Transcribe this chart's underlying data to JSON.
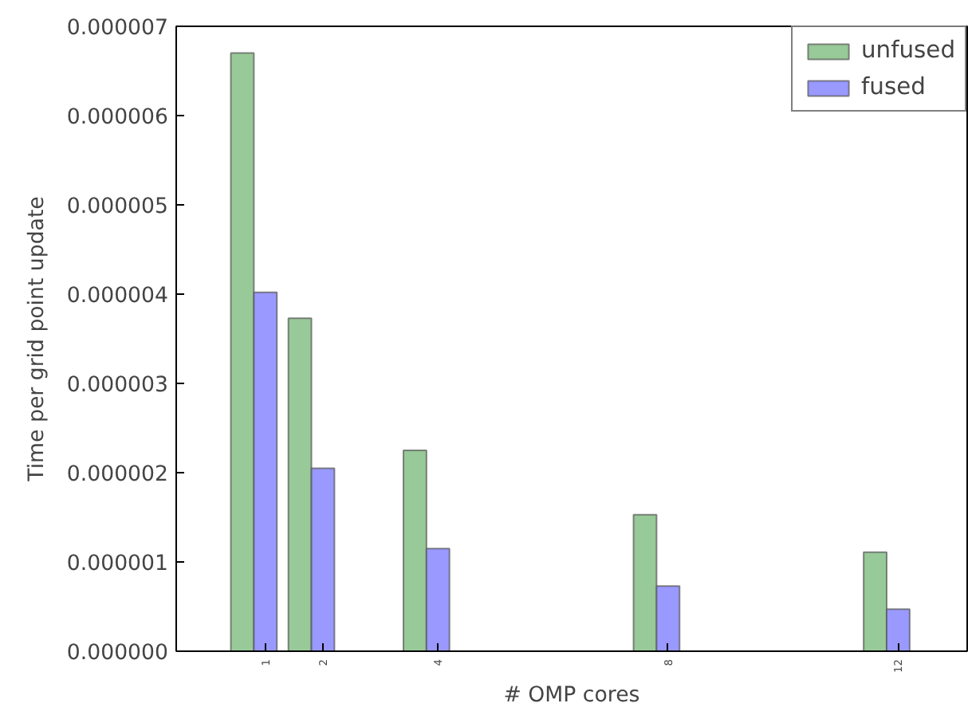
{
  "chart_data": {
    "type": "bar",
    "xlabel": "# OMP cores",
    "ylabel": "Time per grid point update",
    "x": [
      1,
      2,
      4,
      8,
      12
    ],
    "series": [
      {
        "name": "unfused",
        "color": "#98c998",
        "values": [
          6.7e-06,
          3.73e-06,
          2.25e-06,
          1.53e-06,
          1.11e-06
        ]
      },
      {
        "name": "fused",
        "color": "#9999ff",
        "values": [
          4.02e-06,
          2.05e-06,
          1.15e-06,
          7.3e-07,
          4.7e-07
        ]
      }
    ],
    "xlim": [
      -0.55,
      13.2
    ],
    "xticks": [
      1,
      2,
      4,
      8,
      12
    ],
    "ylim": [
      0,
      7e-06
    ],
    "yticks": [
      {
        "value": 0,
        "label": "0.000000"
      },
      {
        "value": 1e-06,
        "label": "0.000001"
      },
      {
        "value": 2e-06,
        "label": "0.000002"
      },
      {
        "value": 3e-06,
        "label": "0.000003"
      },
      {
        "value": 4e-06,
        "label": "0.000004"
      },
      {
        "value": 5e-06,
        "label": "0.000005"
      },
      {
        "value": 6e-06,
        "label": "0.000006"
      },
      {
        "value": 7e-06,
        "label": "0.000007"
      }
    ],
    "grid": false,
    "legend": "top right"
  }
}
